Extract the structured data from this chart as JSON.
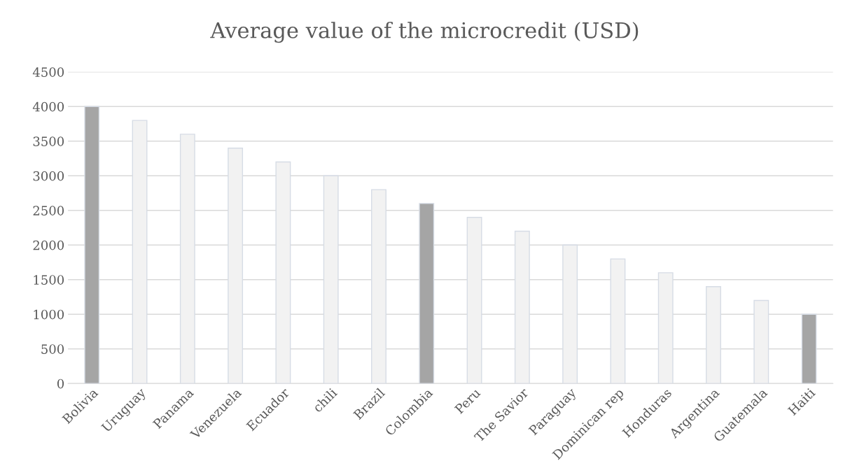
{
  "chart_data": {
    "type": "bar",
    "title": "Average value of the microcredit (USD)",
    "categories": [
      "Bolivia",
      "Uruguay",
      "Panama",
      "Venezuela",
      "Ecuador",
      "chili",
      "Brazil",
      "Colombia",
      "Peru",
      "The Savior",
      "Paraguay",
      "Dominican rep",
      "Honduras",
      "Argentina",
      "Guatemala",
      "Haiti"
    ],
    "values": [
      4000,
      3800,
      3600,
      3400,
      3200,
      3000,
      2800,
      2600,
      2400,
      2200,
      2000,
      1800,
      1600,
      1400,
      1200,
      1000
    ],
    "colors": [
      "#a5a5a5",
      "#f2f2f2",
      "#f2f2f2",
      "#f2f2f2",
      "#f2f2f2",
      "#f2f2f2",
      "#f2f2f2",
      "#a5a5a5",
      "#f2f2f2",
      "#f2f2f2",
      "#f2f2f2",
      "#f2f2f2",
      "#f2f2f2",
      "#f2f2f2",
      "#f2f2f2",
      "#a5a5a5"
    ],
    "ylim": [
      0,
      4500
    ],
    "yticks": [
      0,
      500,
      1000,
      1500,
      2000,
      2500,
      3000,
      3500,
      4000,
      4500
    ],
    "grid": "y"
  }
}
